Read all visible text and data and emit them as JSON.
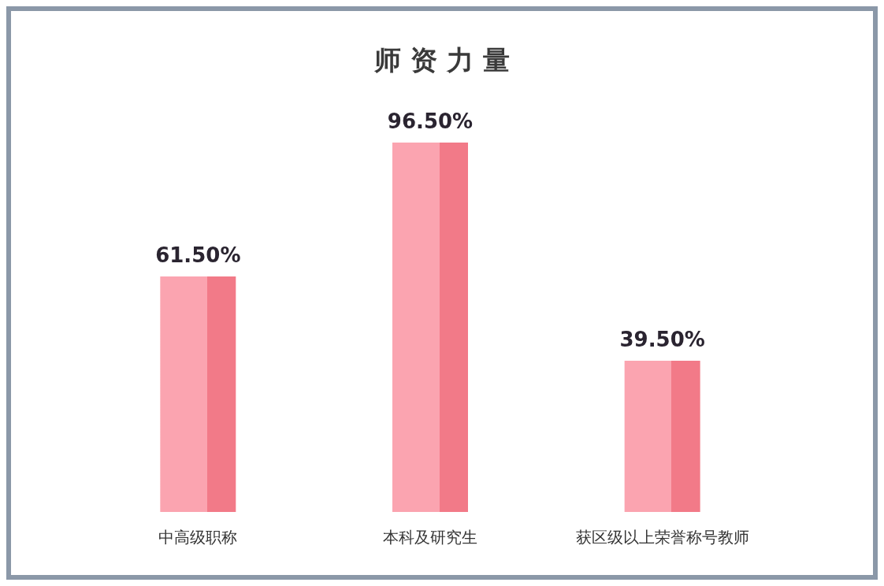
{
  "chart_data": {
    "type": "bar",
    "title": "师 资 力 量",
    "categories": [
      "中高级职称",
      "本科及研究生",
      "获区级以上荣誉称号教师"
    ],
    "values": [
      61.5,
      96.5,
      39.5
    ],
    "value_labels": [
      "61.50%",
      "96.50%",
      "39.50%"
    ],
    "color": "#fba4b0"
  }
}
